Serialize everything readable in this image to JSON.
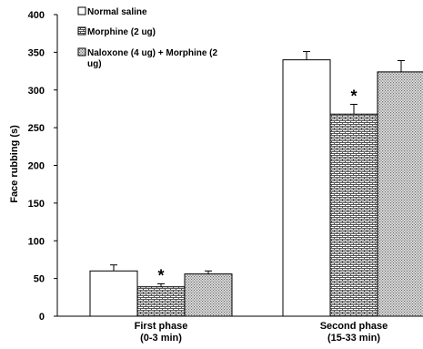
{
  "chart_data": {
    "type": "bar",
    "title": "",
    "xlabel": "",
    "ylabel": "Face rubbing (s)",
    "ylim": [
      0,
      400
    ],
    "yticks": [
      0,
      50,
      100,
      150,
      200,
      250,
      300,
      350,
      400
    ],
    "grid": false,
    "legend_placement": "top-left",
    "categories": [
      [
        "First phase",
        "(0-3 min)"
      ],
      [
        "Second phase",
        "(15-33 min)"
      ]
    ],
    "series": [
      {
        "name": "Normal saline",
        "legend_lines": [
          "Normal saline"
        ],
        "pattern": "solid-white",
        "values": [
          60,
          340
        ],
        "errors": [
          8,
          11
        ]
      },
      {
        "name": "Morphine (2 ug)",
        "legend_lines": [
          "Morphine (2 ug)"
        ],
        "pattern": "brick",
        "values": [
          39,
          268
        ],
        "errors": [
          4,
          13
        ]
      },
      {
        "name": "Naloxone (4 ug) + Morphine (2 ug)",
        "legend_lines": [
          "Naloxone (4 ug) + Morphine (2",
          "ug)"
        ],
        "pattern": "fine-dots",
        "values": [
          56,
          324
        ],
        "errors": [
          4,
          15
        ]
      }
    ],
    "annotations": [
      {
        "text": "*",
        "category": 0,
        "series": 1
      },
      {
        "text": "*",
        "category": 1,
        "series": 1
      }
    ]
  }
}
